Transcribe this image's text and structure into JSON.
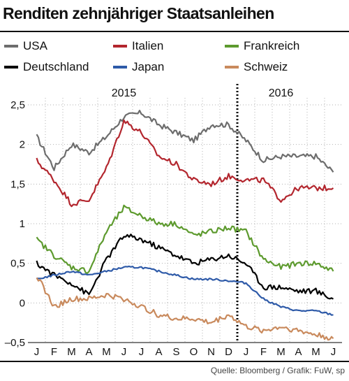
{
  "header": {
    "title": "Renditen zehnjähriger Staatsanleihen"
  },
  "footer": {
    "source": "Quelle: Bloomberg / Grafik: FuW, sp"
  },
  "chart_data": {
    "type": "line",
    "title": "Renditen zehnjähriger Staatsanleihen",
    "unit": "%",
    "xlabel": "",
    "ylabel": "",
    "ylim": [
      -0.5,
      2.5
    ],
    "yticks": [
      -0.5,
      0,
      0.5,
      1,
      1.5,
      2,
      2.5
    ],
    "ytick_labels": [
      "–0,5",
      "0",
      "0,5",
      "1",
      "1,5",
      "2",
      "2,5"
    ],
    "x_categories": [
      "J",
      "F",
      "M",
      "A",
      "M",
      "J",
      "J",
      "A",
      "S",
      "O",
      "N",
      "D",
      "J",
      "F",
      "M",
      "A",
      "M",
      "J"
    ],
    "x_years": [
      {
        "label": "2015",
        "month_index": 5
      },
      {
        "label": "2016",
        "month_index": 14
      }
    ],
    "year_divider_month_index": 12,
    "grid": true,
    "legend_position": "top",
    "series": [
      {
        "name": "USA",
        "color": "#6d6d6d",
        "values": [
          2.1,
          1.7,
          2.0,
          1.9,
          2.1,
          2.35,
          2.4,
          2.25,
          2.15,
          2.05,
          2.25,
          2.25,
          2.05,
          1.8,
          1.85,
          1.85,
          1.85,
          1.65
        ]
      },
      {
        "name": "Italien",
        "color": "#b3262e",
        "values": [
          1.8,
          1.55,
          1.25,
          1.3,
          1.7,
          2.3,
          2.15,
          1.85,
          1.75,
          1.55,
          1.5,
          1.6,
          1.55,
          1.55,
          1.3,
          1.45,
          1.45,
          1.45
        ]
      },
      {
        "name": "Frankreich",
        "color": "#5d9a2e",
        "values": [
          0.8,
          0.6,
          0.45,
          0.4,
          0.9,
          1.2,
          1.1,
          1.0,
          1.0,
          0.85,
          0.9,
          0.95,
          0.9,
          0.55,
          0.45,
          0.5,
          0.5,
          0.4
        ]
      },
      {
        "name": "Deutschland",
        "color": "#000000",
        "values": [
          0.5,
          0.35,
          0.25,
          0.1,
          0.55,
          0.85,
          0.8,
          0.7,
          0.6,
          0.5,
          0.55,
          0.6,
          0.5,
          0.2,
          0.2,
          0.15,
          0.15,
          0.05
        ]
      },
      {
        "name": "Japan",
        "color": "#2e5aa8",
        "values": [
          0.3,
          0.35,
          0.4,
          0.35,
          0.4,
          0.45,
          0.45,
          0.4,
          0.35,
          0.3,
          0.3,
          0.28,
          0.25,
          0.05,
          -0.05,
          -0.1,
          -0.1,
          -0.15
        ]
      },
      {
        "name": "Schweiz",
        "color": "#c98a5d",
        "values": [
          0.35,
          -0.05,
          0.05,
          0.05,
          0.1,
          0.05,
          -0.05,
          -0.15,
          -0.2,
          -0.2,
          -0.25,
          -0.15,
          -0.3,
          -0.35,
          -0.3,
          -0.35,
          -0.4,
          -0.45
        ]
      }
    ]
  }
}
